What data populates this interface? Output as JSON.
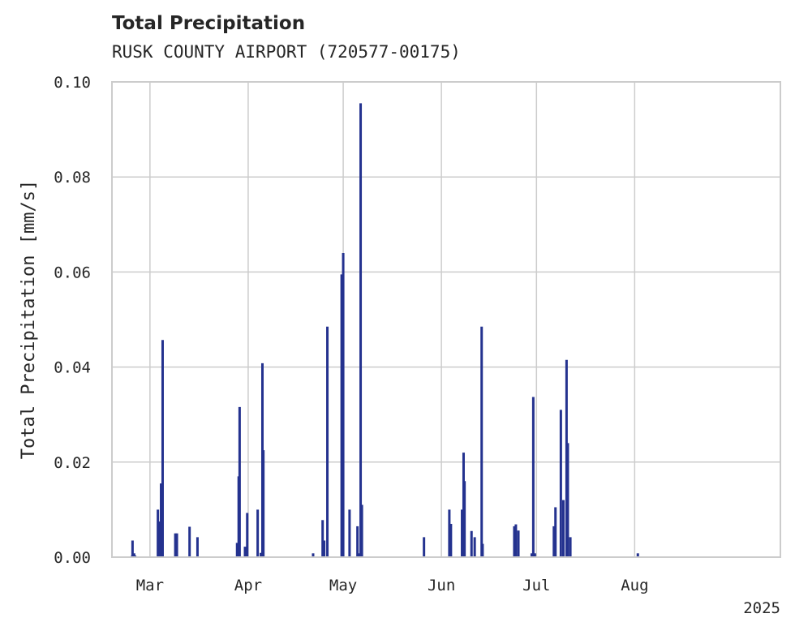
{
  "chart_data": {
    "type": "bar",
    "title": "Total Precipitation",
    "subtitle": "RUSK COUNTY AIRPORT (720577-00175)",
    "xlabel": "",
    "ylabel": "Total Precipitation [mm/s]",
    "ylim": [
      0,
      0.1
    ],
    "y_ticks": [
      0.0,
      0.02,
      0.04,
      0.06,
      0.08,
      0.1
    ],
    "y_tick_labels": [
      "0.00",
      "0.02",
      "0.04",
      "0.06",
      "0.08",
      "0.10"
    ],
    "x_range_days": [
      -12,
      199
    ],
    "x_ticks": [
      {
        "label": "Mar",
        "day": 0
      },
      {
        "label": "Apr",
        "day": 31
      },
      {
        "label": "May",
        "day": 61
      },
      {
        "label": "Jun",
        "day": 92
      },
      {
        "label": "Jul",
        "day": 122
      },
      {
        "label": "Aug",
        "day": 153
      }
    ],
    "x_year_label": "2025",
    "grid": true,
    "bar_color": "#24328f",
    "series": [
      {
        "name": "Total Precipitation",
        "points": [
          [
            -5.5,
            0.0035
          ],
          [
            -5.0,
            0.0008
          ],
          [
            2.5,
            0.01
          ],
          [
            3.5,
            0.0155
          ],
          [
            4.0,
            0.0457
          ],
          [
            3.2,
            0.0075
          ],
          [
            8.0,
            0.005
          ],
          [
            8.5,
            0.005
          ],
          [
            12.5,
            0.0064
          ],
          [
            15.0,
            0.0042
          ],
          [
            27.5,
            0.003
          ],
          [
            28.0,
            0.017
          ],
          [
            28.3,
            0.0316
          ],
          [
            30.0,
            0.0022
          ],
          [
            30.7,
            0.0093
          ],
          [
            34.0,
            0.01
          ],
          [
            35.0,
            0.0009
          ],
          [
            35.5,
            0.0408
          ],
          [
            35.8,
            0.0225
          ],
          [
            51.5,
            0.0008
          ],
          [
            54.5,
            0.0078
          ],
          [
            55.0,
            0.0035
          ],
          [
            56.0,
            0.0485
          ],
          [
            60.5,
            0.0595
          ],
          [
            61.0,
            0.064
          ],
          [
            63.0,
            0.01
          ],
          [
            65.5,
            0.0065
          ],
          [
            66.0,
            0.0008
          ],
          [
            66.5,
            0.0955
          ],
          [
            66.9,
            0.011
          ],
          [
            86.5,
            0.0042
          ],
          [
            94.5,
            0.01
          ],
          [
            95.0,
            0.007
          ],
          [
            98.5,
            0.01
          ],
          [
            99.0,
            0.022
          ],
          [
            99.3,
            0.016
          ],
          [
            101.5,
            0.0055
          ],
          [
            102.5,
            0.0042
          ],
          [
            104.7,
            0.0485
          ],
          [
            105.0,
            0.0028
          ],
          [
            115.0,
            0.0065
          ],
          [
            115.5,
            0.0069
          ],
          [
            116.3,
            0.0056
          ],
          [
            120.5,
            0.0008
          ],
          [
            121.0,
            0.0337
          ],
          [
            121.5,
            0.0008
          ],
          [
            127.5,
            0.0065
          ],
          [
            128.0,
            0.0105
          ],
          [
            129.7,
            0.031
          ],
          [
            130.5,
            0.012
          ],
          [
            131.5,
            0.0415
          ],
          [
            131.9,
            0.024
          ],
          [
            132.7,
            0.0042
          ],
          [
            154.0,
            0.0008
          ]
        ]
      }
    ]
  }
}
